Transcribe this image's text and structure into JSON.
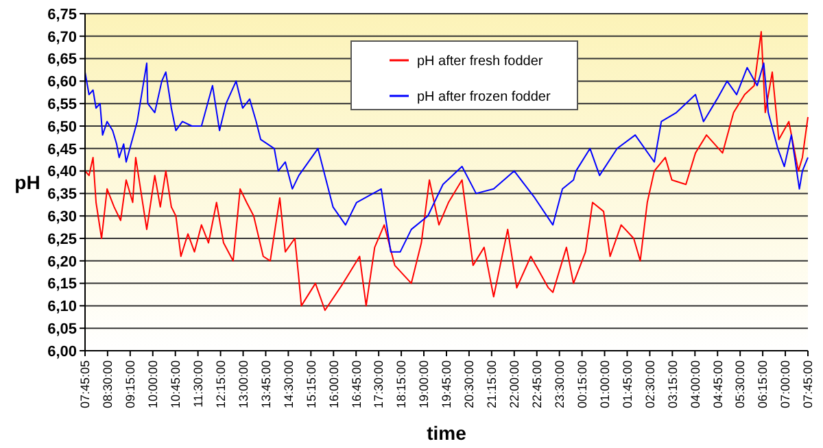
{
  "chart_data": {
    "type": "line",
    "xlabel": "time",
    "ylabel": "pH",
    "legend": "top",
    "grid": "y",
    "marker": "none",
    "line_style": "solid",
    "xlim": [
      "2000-01-01T07:45:05",
      "2000-01-02T07:45"
    ],
    "ylim": [
      6,
      6.75
    ],
    "yticks": [
      {
        "value": 6,
        "label": "6,00"
      },
      {
        "value": 6.05,
        "label": "6,05"
      },
      {
        "value": 6.1,
        "label": "6,10"
      },
      {
        "value": 6.15,
        "label": "6,15"
      },
      {
        "value": 6.2,
        "label": "6,20"
      },
      {
        "value": 6.25,
        "label": "6,25"
      },
      {
        "value": 6.3,
        "label": "6,30"
      },
      {
        "value": 6.35,
        "label": "6,35"
      },
      {
        "value": 6.4,
        "label": "6,40"
      },
      {
        "value": 6.45,
        "label": "6,45"
      },
      {
        "value": 6.5,
        "label": "6,50"
      },
      {
        "value": 6.55,
        "label": "6,55"
      },
      {
        "value": 6.6,
        "label": "6,60"
      },
      {
        "value": 6.65,
        "label": "6,65"
      },
      {
        "value": 6.7,
        "label": "6,70"
      },
      {
        "value": 6.75,
        "label": "6,75"
      }
    ],
    "xticks": [
      {
        "value": "2000-01-01T07:45:05",
        "label": "07:45:05"
      },
      {
        "value": "2000-01-01T08:30",
        "label": "08:30:00"
      },
      {
        "value": "2000-01-01T09:15",
        "label": "09:15:00"
      },
      {
        "value": "2000-01-01T10:00",
        "label": "10:00:00"
      },
      {
        "value": "2000-01-01T10:45",
        "label": "10:45:00"
      },
      {
        "value": "2000-01-01T11:30",
        "label": "11:30:00"
      },
      {
        "value": "2000-01-01T12:15",
        "label": "12:15:00"
      },
      {
        "value": "2000-01-01T13:00",
        "label": "13:00:00"
      },
      {
        "value": "2000-01-01T13:45",
        "label": "13:45:00"
      },
      {
        "value": "2000-01-01T14:30",
        "label": "14:30:00"
      },
      {
        "value": "2000-01-01T15:15",
        "label": "15:15:00"
      },
      {
        "value": "2000-01-01T16:00",
        "label": "16:00:00"
      },
      {
        "value": "2000-01-01T16:45",
        "label": "16:45:00"
      },
      {
        "value": "2000-01-01T17:30",
        "label": "17:30:00"
      },
      {
        "value": "2000-01-01T18:15",
        "label": "18:15:00"
      },
      {
        "value": "2000-01-01T19:00",
        "label": "19:00:00"
      },
      {
        "value": "2000-01-01T19:45",
        "label": "19:45:00"
      },
      {
        "value": "2000-01-01T20:30",
        "label": "20:30:00"
      },
      {
        "value": "2000-01-01T21:15",
        "label": "21:15:00"
      },
      {
        "value": "2000-01-01T22:00",
        "label": "22:00:00"
      },
      {
        "value": "2000-01-01T22:45",
        "label": "22:45:00"
      },
      {
        "value": "2000-01-01T23:30",
        "label": "23:30:00"
      },
      {
        "value": "2000-01-02T00:15",
        "label": "00:15:00"
      },
      {
        "value": "2000-01-02T01:00",
        "label": "01:00:00"
      },
      {
        "value": "2000-01-02T01:45",
        "label": "01:45:00"
      },
      {
        "value": "2000-01-02T02:30",
        "label": "02:30:00"
      },
      {
        "value": "2000-01-02T03:15",
        "label": "03:15:00"
      },
      {
        "value": "2000-01-02T04:00",
        "label": "04:00:00"
      },
      {
        "value": "2000-01-02T04:45",
        "label": "04:45:00"
      },
      {
        "value": "2000-01-02T05:30",
        "label": "05:30:00"
      },
      {
        "value": "2000-01-02T06:15",
        "label": "06:15:00"
      },
      {
        "value": "2000-01-02T07:00",
        "label": "07:00:00"
      },
      {
        "value": "2000-01-02T07:45",
        "label": "07:45:00"
      }
    ],
    "series": [
      {
        "name": "pH after fresh fodder",
        "color": "#ff0000",
        "x": [
          "2000-01-01T07:45:05",
          "2000-01-01T07:53",
          "2000-01-01T08:01",
          "2000-01-01T08:07",
          "2000-01-01T08:18",
          "2000-01-01T08:29",
          "2000-01-01T08:43",
          "2000-01-01T08:56",
          "2000-01-01T09:07",
          "2000-01-01T09:20",
          "2000-01-01T09:26",
          "2000-01-01T09:48",
          "2000-01-01T10:04",
          "2000-01-01T10:15",
          "2000-01-01T10:26",
          "2000-01-01T10:37",
          "2000-01-01T10:46",
          "2000-01-01T10:56",
          "2000-01-01T11:10",
          "2000-01-01T11:23",
          "2000-01-01T11:37",
          "2000-01-01T11:51",
          "2000-01-01T12:07",
          "2000-01-01T12:21",
          "2000-01-01T12:40",
          "2000-01-01T12:54",
          "2000-01-01T13:07",
          "2000-01-01T13:21",
          "2000-01-01T13:40",
          "2000-01-01T13:54",
          "2000-01-01T14:13",
          "2000-01-01T14:24",
          "2000-01-01T14:43",
          "2000-01-01T14:51",
          "2000-01-01T14:56",
          "2000-01-01T15:24",
          "2000-01-01T15:43",
          "2000-01-01T16:19",
          "2000-01-01T16:52",
          "2000-01-01T17:05",
          "2000-01-01T17:22",
          "2000-01-01T17:41",
          "2000-01-01T18:02",
          "2000-01-01T18:35",
          "2000-01-01T18:55",
          "2000-01-01T19:11",
          "2000-01-01T19:30",
          "2000-01-01T19:49",
          "2000-01-01T20:16",
          "2000-01-01T20:38",
          "2000-01-01T21:00",
          "2000-01-01T21:19",
          "2000-01-01T21:47",
          "2000-01-01T22:05",
          "2000-01-01T22:33",
          "2000-01-01T23:08",
          "2000-01-01T23:17",
          "2000-01-01T23:44",
          "2000-01-01T23:58",
          "2000-01-02T00:22",
          "2000-01-02T00:36",
          "2000-01-02T00:58",
          "2000-01-02T01:11",
          "2000-01-02T01:33",
          "2000-01-02T01:58",
          "2000-01-02T02:11",
          "2000-01-02T02:25",
          "2000-01-02T02:39",
          "2000-01-02T03:01",
          "2000-01-02T03:14",
          "2000-01-02T03:42",
          "2000-01-02T04:01",
          "2000-01-02T04:23",
          "2000-01-02T04:55",
          "2000-01-02T05:17",
          "2000-01-02T05:39",
          "2000-01-02T05:58",
          "2000-01-02T06:12",
          "2000-01-02T06:20",
          "2000-01-02T06:34",
          "2000-01-02T06:47",
          "2000-01-02T07:07",
          "2000-01-02T07:26",
          "2000-01-02T07:34",
          "2000-01-02T07:45"
        ],
        "values": [
          6.4,
          6.39,
          6.43,
          6.33,
          6.25,
          6.36,
          6.32,
          6.29,
          6.38,
          6.33,
          6.43,
          6.27,
          6.39,
          6.32,
          6.4,
          6.32,
          6.3,
          6.21,
          6.26,
          6.22,
          6.28,
          6.24,
          6.33,
          6.24,
          6.2,
          6.36,
          6.33,
          6.3,
          6.21,
          6.2,
          6.34,
          6.22,
          6.25,
          6.16,
          6.1,
          6.15,
          6.09,
          6.15,
          6.21,
          6.1,
          6.23,
          6.28,
          6.19,
          6.15,
          6.24,
          6.38,
          6.28,
          6.33,
          6.38,
          6.19,
          6.23,
          6.12,
          6.27,
          6.14,
          6.21,
          6.14,
          6.13,
          6.23,
          6.15,
          6.22,
          6.33,
          6.31,
          6.21,
          6.28,
          6.25,
          6.2,
          6.33,
          6.4,
          6.43,
          6.38,
          6.37,
          6.44,
          6.48,
          6.44,
          6.53,
          6.57,
          6.59,
          6.71,
          6.53,
          6.62,
          6.47,
          6.51,
          6.4,
          6.43,
          6.52
        ]
      },
      {
        "name": "pH after frozen fodder",
        "color": "#0000ff",
        "x": [
          "2000-01-01T07:45:05",
          "2000-01-01T07:53",
          "2000-01-01T08:01",
          "2000-01-01T08:07",
          "2000-01-01T08:15",
          "2000-01-01T08:20",
          "2000-01-01T08:29",
          "2000-01-01T08:40",
          "2000-01-01T08:48",
          "2000-01-01T08:53",
          "2000-01-01T09:02",
          "2000-01-01T09:07",
          "2000-01-01T09:29",
          "2000-01-01T09:48",
          "2000-01-01T09:50",
          "2000-01-01T10:04",
          "2000-01-01T10:18",
          "2000-01-01T10:26",
          "2000-01-01T10:37",
          "2000-01-01T10:46",
          "2000-01-01T10:59",
          "2000-01-01T11:18",
          "2000-01-01T11:37",
          "2000-01-01T11:59",
          "2000-01-01T12:13",
          "2000-01-01T12:26",
          "2000-01-01T12:46",
          "2000-01-01T12:59",
          "2000-01-01T13:13",
          "2000-01-01T13:26",
          "2000-01-01T13:35",
          "2000-01-01T14:02",
          "2000-01-01T14:10",
          "2000-01-01T14:24",
          "2000-01-01T14:38",
          "2000-01-01T14:51",
          "2000-01-01T15:29",
          "2000-01-01T15:59",
          "2000-01-01T16:24",
          "2000-01-01T16:46",
          "2000-01-01T17:35",
          "2000-01-01T17:54",
          "2000-01-01T18:13",
          "2000-01-01T18:35",
          "2000-01-01T19:08",
          "2000-01-01T19:38",
          "2000-01-01T20:16",
          "2000-01-01T20:44",
          "2000-01-01T21:19",
          "2000-01-01T22:00",
          "2000-01-01T22:41",
          "2000-01-01T23:17",
          "2000-01-01T23:36",
          "2000-01-01T23:58",
          "2000-01-02T00:03",
          "2000-01-02T00:31",
          "2000-01-02T00:50",
          "2000-01-02T01:25",
          "2000-01-02T02:01",
          "2000-01-02T02:39",
          "2000-01-02T02:53",
          "2000-01-02T03:23",
          "2000-01-02T04:01",
          "2000-01-02T04:17",
          "2000-01-02T04:44",
          "2000-01-02T05:04",
          "2000-01-02T05:23",
          "2000-01-02T05:44",
          "2000-01-02T06:04",
          "2000-01-02T06:17",
          "2000-01-02T06:26",
          "2000-01-02T06:45",
          "2000-01-02T06:58",
          "2000-01-02T07:12",
          "2000-01-02T07:28",
          "2000-01-02T07:34",
          "2000-01-02T07:45"
        ],
        "values": [
          6.62,
          6.57,
          6.58,
          6.54,
          6.55,
          6.48,
          6.51,
          6.49,
          6.46,
          6.43,
          6.46,
          6.42,
          6.51,
          6.64,
          6.55,
          6.53,
          6.6,
          6.62,
          6.54,
          6.49,
          6.51,
          6.5,
          6.5,
          6.59,
          6.49,
          6.55,
          6.6,
          6.54,
          6.56,
          6.51,
          6.47,
          6.45,
          6.4,
          6.42,
          6.36,
          6.39,
          6.45,
          6.32,
          6.28,
          6.33,
          6.36,
          6.22,
          6.22,
          6.27,
          6.3,
          6.37,
          6.41,
          6.35,
          6.36,
          6.4,
          6.34,
          6.28,
          6.36,
          6.38,
          6.4,
          6.45,
          6.39,
          6.45,
          6.48,
          6.42,
          6.51,
          6.53,
          6.57,
          6.51,
          6.56,
          6.6,
          6.57,
          6.63,
          6.59,
          6.64,
          6.53,
          6.45,
          6.41,
          6.48,
          6.36,
          6.4,
          6.43
        ]
      }
    ]
  }
}
